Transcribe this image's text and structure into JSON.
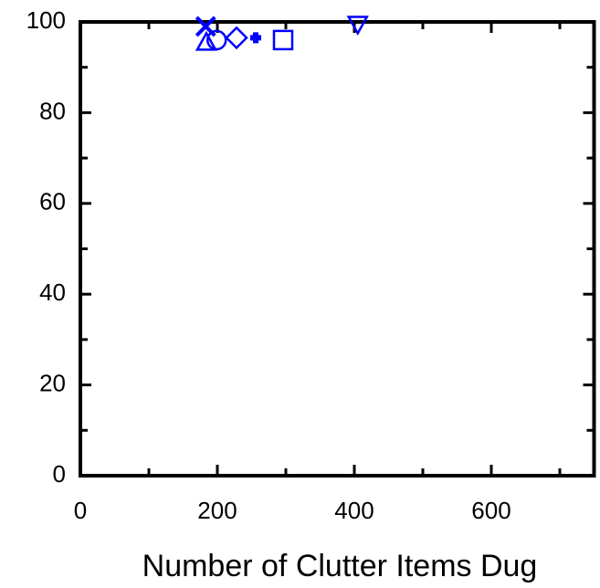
{
  "chart_data": {
    "type": "scatter",
    "xlabel": "Number of Clutter Items Dug",
    "color": "#0000ff",
    "points": [
      {
        "marker": "x",
        "x": 183,
        "y": 99
      },
      {
        "marker": "triangle-up",
        "x": 184,
        "y": 95.5
      },
      {
        "marker": "circle",
        "x": 199,
        "y": 96
      },
      {
        "marker": "diamond",
        "x": 228,
        "y": 96.5
      },
      {
        "marker": "plus",
        "x": 256,
        "y": 96.5
      },
      {
        "marker": "square",
        "x": 296,
        "y": 96
      },
      {
        "marker": "triangle-down",
        "x": 405,
        "y": 99.5
      }
    ],
    "xlim": [
      0,
      750
    ],
    "xticks": [
      0,
      200,
      400,
      600
    ],
    "xminorticks": [
      100,
      300,
      500,
      700
    ],
    "ylim": [
      0,
      100
    ],
    "yticks": [
      0,
      20,
      40,
      60,
      80,
      100
    ],
    "yminorticks": [
      10,
      30,
      50,
      70,
      90
    ],
    "grid": false
  }
}
